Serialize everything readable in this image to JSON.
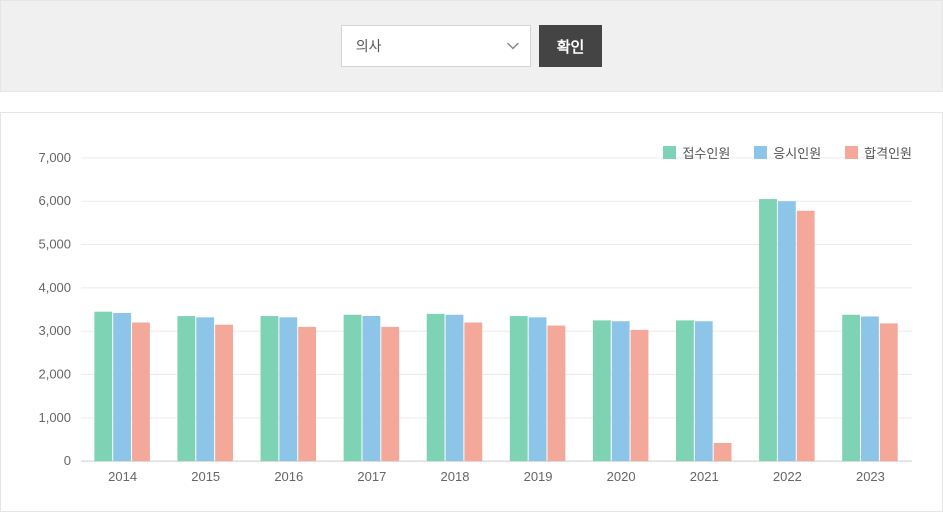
{
  "filter": {
    "selected_value": "의사",
    "confirm_label": "확인"
  },
  "chart": {
    "type": "bar",
    "categories": [
      "2014",
      "2015",
      "2016",
      "2017",
      "2018",
      "2019",
      "2020",
      "2021",
      "2022",
      "2023"
    ],
    "series": [
      {
        "name": "접수인원",
        "color": "#7fd3b5",
        "values": [
          3450,
          3350,
          3350,
          3380,
          3400,
          3350,
          3250,
          3250,
          6050,
          3380
        ]
      },
      {
        "name": "응시인원",
        "color": "#8cc5e8",
        "values": [
          3420,
          3320,
          3320,
          3350,
          3380,
          3320,
          3230,
          3230,
          6000,
          3340
        ]
      },
      {
        "name": "합격인원",
        "color": "#f4a89a",
        "values": [
          3200,
          3150,
          3100,
          3100,
          3200,
          3130,
          3030,
          420,
          5780,
          3180
        ]
      }
    ],
    "ylim": [
      0,
      7000
    ],
    "ytick_step": 1000,
    "yticks": [
      "0",
      "1,000",
      "2,000",
      "3,000",
      "4,000",
      "5,000",
      "6,000",
      "7,000"
    ],
    "axis_fontsize": 13,
    "axis_color": "#666666",
    "grid_color": "#ebebeb",
    "background_color": "#ffffff",
    "bar_group_gap_ratio": 0.32
  },
  "colors": {
    "filter_bg": "#f0f0f0",
    "border": "#e5e5e5",
    "button_bg": "#444444",
    "button_text": "#ffffff",
    "select_bg": "#ffffff",
    "select_border": "#d4d4d4",
    "select_text": "#555555"
  }
}
